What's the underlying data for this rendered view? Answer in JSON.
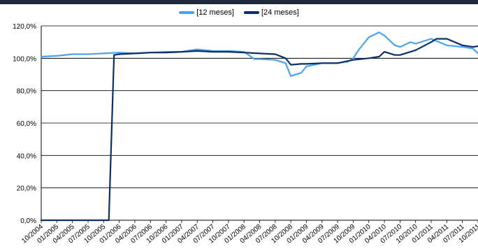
{
  "colors": {
    "series_12": "#4aa3ef",
    "series_24": "#0b2f66",
    "topbar": "#1e2a3c"
  },
  "chart_data": {
    "type": "line",
    "title": "",
    "xlabel": "",
    "ylabel": "",
    "ylim": [
      0,
      120
    ],
    "grid": true,
    "legend_position": "top-center",
    "yticks": [
      "0,0%",
      "20,0%",
      "40,0%",
      "60,0%",
      "80,0%",
      "100,0%",
      "120,0%"
    ],
    "xticks": [
      "10/2004",
      "01/2005",
      "04/2005",
      "07/2005",
      "10/2005",
      "01/2006",
      "04/2006",
      "07/2006",
      "10/2006",
      "01/2007",
      "04/2007",
      "07/2007",
      "10/2007",
      "01/2008",
      "04/2008",
      "07/2008",
      "10/2008",
      "01/2009",
      "04/2009",
      "07/2009",
      "10/2009",
      "01/2010",
      "04/2010",
      "07/2010",
      "10/2010",
      "01/2011",
      "04/2011",
      "07/2011",
      "10/2011"
    ],
    "series": [
      {
        "name": "[12 meses]",
        "color": "#4aa3ef",
        "x": [
          "10/2004",
          "01/2005",
          "04/2005",
          "07/2005",
          "10/2005",
          "01/2006",
          "04/2006",
          "07/2006",
          "10/2006",
          "01/2007",
          "04/2007",
          "07/2007",
          "10/2007",
          "01/2008",
          "03/2008",
          "04/2008",
          "07/2008",
          "09/2008",
          "10/2008",
          "12/2008",
          "01/2009",
          "04/2009",
          "07/2009",
          "09/2009",
          "10/2009",
          "11/2009",
          "01/2010",
          "03/2010",
          "04/2010",
          "06/2010",
          "07/2010",
          "09/2010",
          "10/2010",
          "01/2011",
          "04/2011",
          "07/2011",
          "09/2011",
          "10/2011",
          "11/2011"
        ],
        "values": [
          101.0,
          101.5,
          102.5,
          102.5,
          103.0,
          103.5,
          103.0,
          103.5,
          104.0,
          104.0,
          105.5,
          104.5,
          104.5,
          104.0,
          99.5,
          99.5,
          99.0,
          97.0,
          89.0,
          91.0,
          95.0,
          97.0,
          97.0,
          98.0,
          100.0,
          105.0,
          113.0,
          116.0,
          114.0,
          108.0,
          107.0,
          110.0,
          109.0,
          112.0,
          108.0,
          107.0,
          106.0,
          103.0,
          99.0
        ]
      },
      {
        "name": "[24 meses]",
        "color": "#0b2f66",
        "x": [
          "10/2004",
          "07/2005",
          "10/2005",
          "11/2005",
          "12/2005",
          "01/2006",
          "04/2006",
          "07/2006",
          "10/2006",
          "01/2007",
          "04/2007",
          "07/2007",
          "10/2007",
          "01/2008",
          "04/2008",
          "07/2008",
          "09/2008",
          "10/2008",
          "12/2008",
          "01/2009",
          "04/2009",
          "07/2009",
          "10/2009",
          "01/2010",
          "03/2010",
          "04/2010",
          "06/2010",
          "07/2010",
          "10/2010",
          "01/2011",
          "02/2011",
          "04/2011",
          "07/2011",
          "09/2011",
          "10/2011",
          "11/2011"
        ],
        "values": [
          0,
          0,
          0,
          0,
          102.0,
          102.5,
          103.0,
          103.5,
          103.5,
          104.0,
          104.5,
          104.0,
          104.0,
          103.5,
          103.0,
          102.5,
          100.0,
          96.0,
          96.5,
          96.5,
          97.0,
          97.0,
          99.0,
          100.0,
          101.0,
          104.0,
          102.0,
          102.0,
          105.0,
          110.0,
          112.0,
          112.0,
          108.0,
          107.0,
          107.5,
          105.0
        ]
      }
    ]
  }
}
